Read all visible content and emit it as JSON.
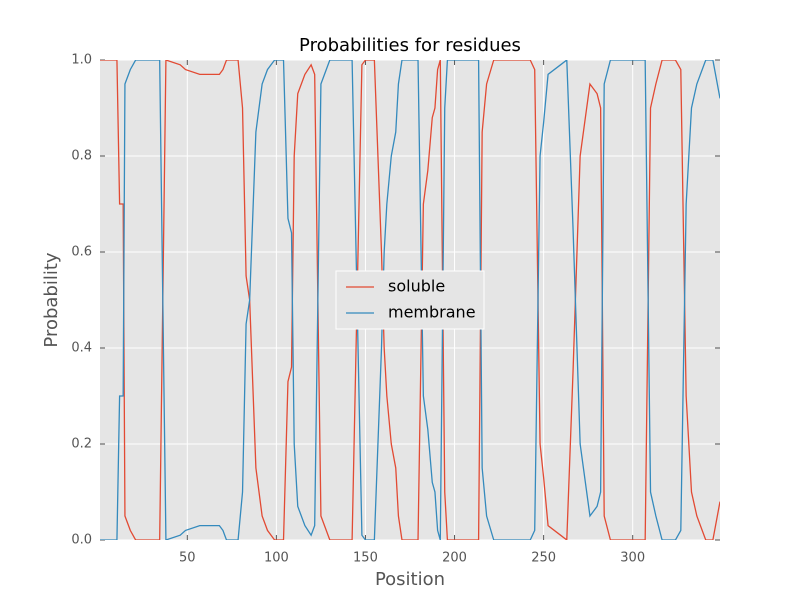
{
  "chart_data": {
    "type": "line",
    "title": "Probabilities for residues",
    "xlabel": "Position",
    "ylabel": "Probability",
    "x": [
      1,
      10.5,
      12,
      14,
      15,
      18,
      21,
      34.5,
      38,
      46,
      49,
      57,
      68,
      70,
      72,
      78.5,
      81,
      83,
      85,
      86,
      88.5,
      92,
      95,
      99,
      104,
      106.5,
      108.5,
      110,
      112,
      116,
      119.5,
      121.5,
      125,
      130,
      142.5,
      148,
      150,
      155,
      159,
      160.5,
      162,
      164.5,
      167,
      168.5,
      170.5,
      179.5,
      182.5,
      185,
      187.5,
      189,
      190.5,
      192,
      194.5,
      196,
      213.5,
      215.5,
      218,
      222,
      242.5,
      245,
      248,
      250,
      252.5,
      259.5,
      263,
      266.5,
      270.5,
      276,
      280,
      282,
      284,
      287.5,
      307,
      310,
      313,
      316.5,
      324,
      327,
      330,
      333,
      336,
      341,
      345,
      349
    ],
    "series": [
      {
        "name": "soluble",
        "color": "#E24A33",
        "values": [
          1.0,
          1.0,
          0.7,
          0.7,
          0.05,
          0.02,
          0.0,
          0.0,
          1.0,
          0.99,
          0.98,
          0.97,
          0.97,
          0.98,
          1.0,
          1.0,
          0.9,
          0.55,
          0.5,
          0.4,
          0.15,
          0.05,
          0.02,
          0.0,
          0.0,
          0.33,
          0.36,
          0.8,
          0.93,
          0.97,
          0.99,
          0.97,
          0.05,
          0.0,
          0.0,
          0.99,
          1.0,
          1.0,
          0.6,
          0.4,
          0.3,
          0.2,
          0.15,
          0.05,
          0.0,
          0.0,
          0.7,
          0.77,
          0.88,
          0.9,
          0.98,
          1.0,
          0.1,
          0.0,
          0.0,
          0.85,
          0.95,
          1.0,
          1.0,
          0.98,
          0.2,
          0.13,
          0.03,
          0.01,
          0.0,
          0.35,
          0.8,
          0.95,
          0.93,
          0.9,
          0.05,
          0.0,
          0.0,
          0.9,
          0.95,
          1.0,
          1.0,
          0.98,
          0.3,
          0.1,
          0.05,
          0.0,
          0.0,
          0.08
        ]
      },
      {
        "name": "membrane",
        "color": "#348ABD",
        "values": [
          0.0,
          0.0,
          0.3,
          0.3,
          0.95,
          0.98,
          1.0,
          1.0,
          0.0,
          0.01,
          0.02,
          0.03,
          0.03,
          0.02,
          0.0,
          0.0,
          0.1,
          0.45,
          0.5,
          0.6,
          0.85,
          0.95,
          0.98,
          1.0,
          1.0,
          0.67,
          0.64,
          0.2,
          0.07,
          0.03,
          0.01,
          0.03,
          0.95,
          1.0,
          1.0,
          0.01,
          0.0,
          0.0,
          0.4,
          0.6,
          0.7,
          0.8,
          0.85,
          0.95,
          1.0,
          1.0,
          0.3,
          0.23,
          0.12,
          0.1,
          0.02,
          0.0,
          0.9,
          1.0,
          1.0,
          0.15,
          0.05,
          0.0,
          0.0,
          0.02,
          0.8,
          0.87,
          0.97,
          0.99,
          1.0,
          0.65,
          0.2,
          0.05,
          0.07,
          0.1,
          0.95,
          1.0,
          1.0,
          0.1,
          0.05,
          0.0,
          0.0,
          0.02,
          0.7,
          0.9,
          0.95,
          1.0,
          1.0,
          0.92
        ]
      }
    ],
    "xlim": [
      1,
      349
    ],
    "ylim": [
      0,
      1
    ],
    "xticks": [
      50,
      100,
      150,
      200,
      250,
      300
    ],
    "yticks": [
      {
        "value": 0,
        "label": "0.0"
      },
      0.2,
      0.4,
      0.6,
      0.8,
      {
        "value": 1,
        "label": "1.0"
      }
    ],
    "grid": true,
    "legend": "center"
  }
}
